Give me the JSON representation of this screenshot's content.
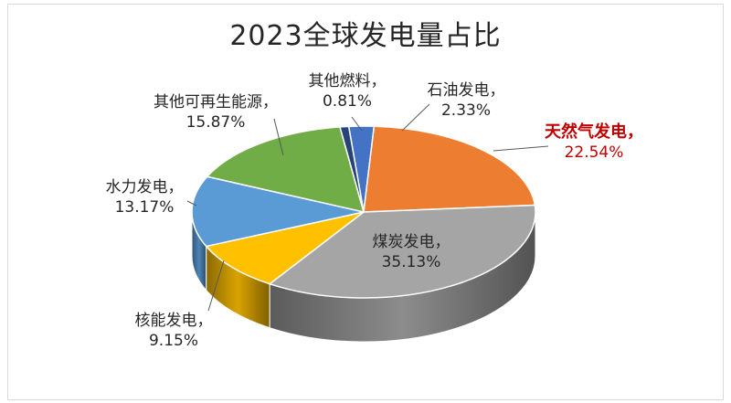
{
  "chart_data": {
    "type": "pie",
    "title": "2023全球发电量占比",
    "three_d": true,
    "slices": [
      {
        "name": "石油发电",
        "value": 2.33,
        "value_label": "2.33%",
        "color": "#4472c4",
        "highlight": false
      },
      {
        "name": "天然气发电",
        "value": 22.54,
        "value_label": "22.54%",
        "color": "#ed7d31",
        "highlight": true
      },
      {
        "name": "煤炭发电",
        "value": 35.13,
        "value_label": "35.13%",
        "color": "#a5a5a5",
        "highlight": false
      },
      {
        "name": "核能发电",
        "value": 9.15,
        "value_label": "9.15%",
        "color": "#ffc000",
        "highlight": false
      },
      {
        "name": "水力发电",
        "value": 13.17,
        "value_label": "13.17%",
        "color": "#5b9bd5",
        "highlight": false
      },
      {
        "name": "其他可再生能源",
        "value": 15.87,
        "value_label": "15.87%",
        "color": "#70ad47",
        "highlight": false
      },
      {
        "name": "其他燃料",
        "value": 0.81,
        "value_label": "0.81%",
        "color": "#264478",
        "highlight": false
      }
    ]
  }
}
